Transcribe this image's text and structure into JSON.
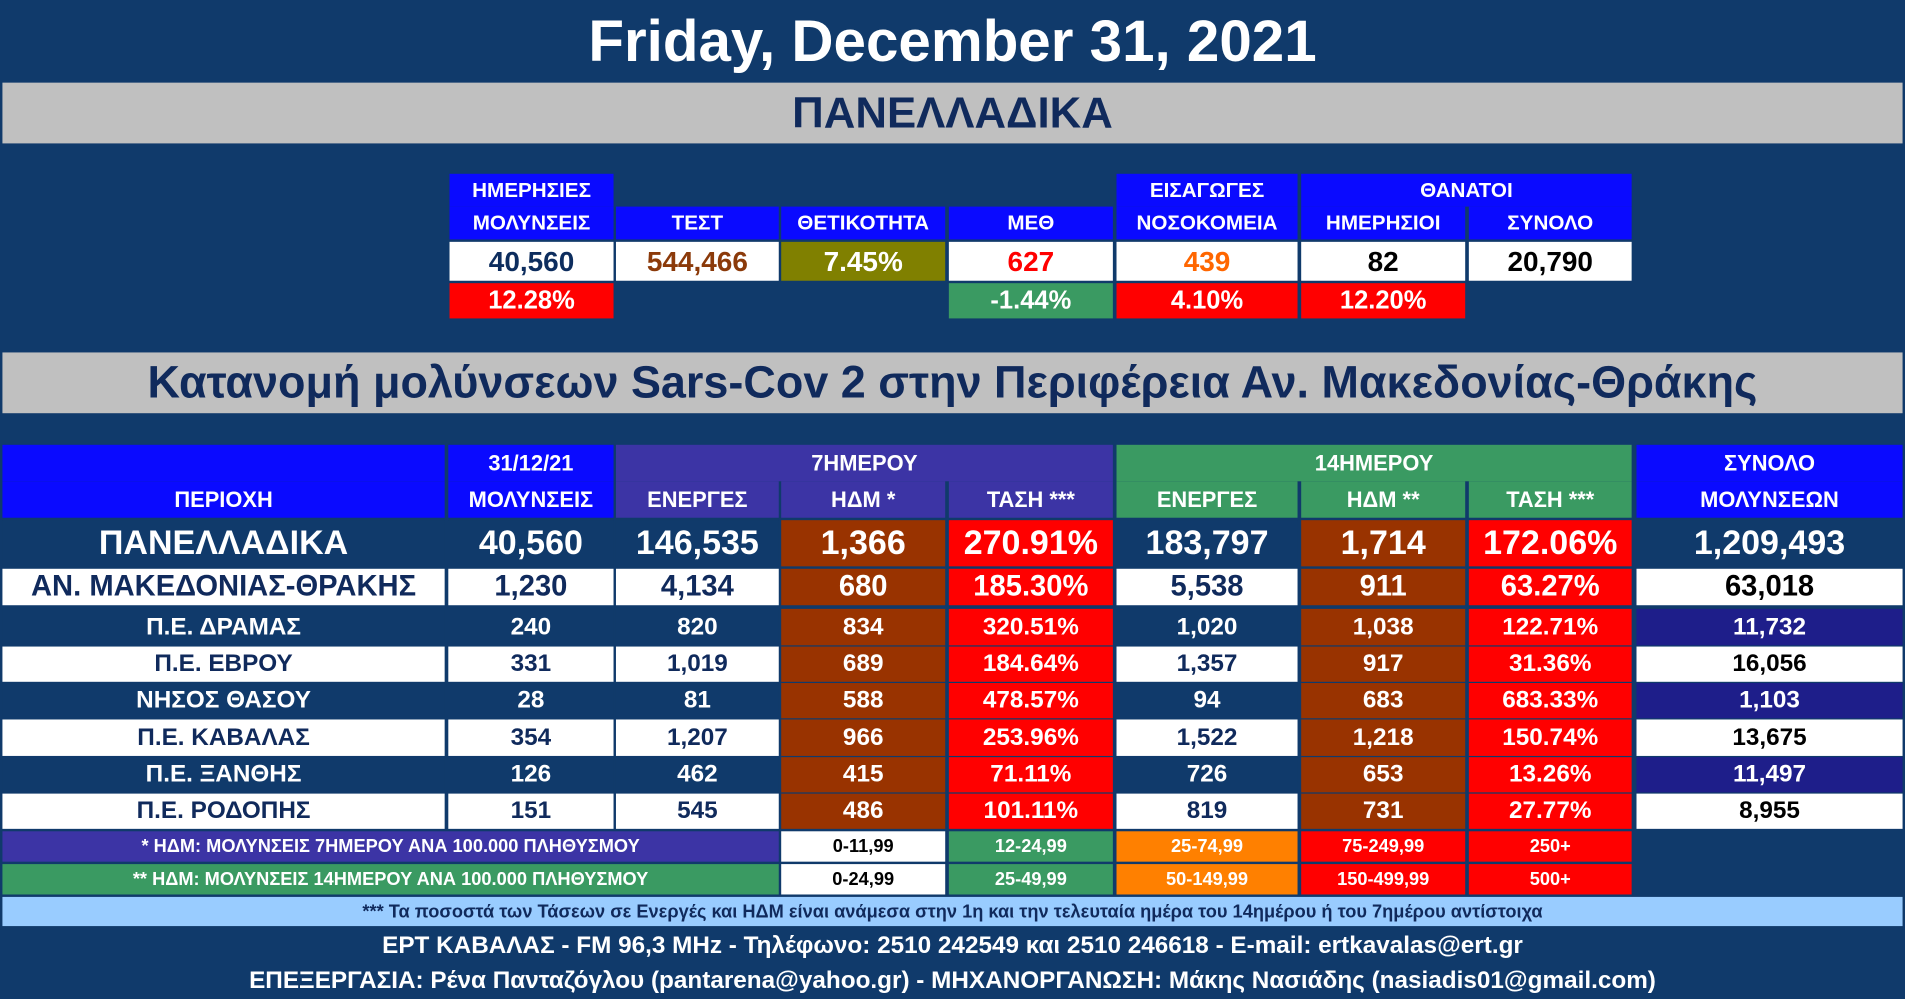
{
  "header": {
    "title": "Friday, December 31, 2021",
    "section1": "ΠΑΝΕΛΛΑΔΙΚΑ",
    "section2": "Κατανομή μολύνσεων Sars-Cov 2 στην Περιφέρεια Αν. Μακεδονίας-Θράκης"
  },
  "national": {
    "header_top": [
      "ΗΜΕΡΗΣΙΕΣ",
      "ΕΙΣΑΓΩΓΕΣ",
      "ΘΑΝΑΤΟΙ"
    ],
    "headers": [
      "ΜΟΛΥΝΣΕΙΣ",
      "ΤΕΣΤ",
      "ΘΕΤΙΚΟΤΗΤΑ",
      "ΜΕΘ",
      "ΝΟΣΟΚΟΜΕΙΑ",
      "ΗΜΕΡΗΣΙΟΙ",
      "ΣΥΝΟΛΟ"
    ],
    "values": [
      "40,560",
      "544,466",
      "7.45%",
      "627",
      "439",
      "82",
      "20,790"
    ],
    "changes": [
      "12.28%",
      null,
      null,
      "-1.44%",
      "4.10%",
      "12.20%",
      null
    ]
  },
  "regional": {
    "header_top": [
      "31/12/21",
      "7ΗΜΕΡΟΥ",
      "14ΗΜΕΡΟΥ",
      "ΣΥΝΟΛΟ"
    ],
    "headers": [
      "ΠΕΡΙΟΧΗ",
      "ΜΟΛΥΝΣΕΙΣ",
      "ΕΝΕΡΓΕΣ",
      "ΗΔΜ *",
      "ΤΑΣΗ ***",
      "ΕΝΕΡΓΕΣ",
      "ΗΔΜ **",
      "ΤΑΣΗ ***",
      "ΜΟΛΥΝΣΕΩΝ"
    ],
    "rows": [
      [
        "ΠΑΝΕΛΛΑΔΙΚΑ",
        "40,560",
        "146,535",
        "1,366",
        "270.91%",
        "183,797",
        "1,714",
        "172.06%",
        "1,209,493"
      ],
      [
        "ΑΝ. ΜΑΚΕΔΟΝΙΑΣ-ΘΡΑΚΗΣ",
        "1,230",
        "4,134",
        "680",
        "185.30%",
        "5,538",
        "911",
        "63.27%",
        "63,018"
      ],
      [
        "Π.Ε. ΔΡΑΜΑΣ",
        "240",
        "820",
        "834",
        "320.51%",
        "1,020",
        "1,038",
        "122.71%",
        "11,732"
      ],
      [
        "Π.Ε. ΕΒΡΟΥ",
        "331",
        "1,019",
        "689",
        "184.64%",
        "1,357",
        "917",
        "31.36%",
        "16,056"
      ],
      [
        "ΝΗΣΟΣ ΘΑΣΟΥ",
        "28",
        "81",
        "588",
        "478.57%",
        "94",
        "683",
        "683.33%",
        "1,103"
      ],
      [
        "Π.Ε. ΚΑΒΑΛΑΣ",
        "354",
        "1,207",
        "966",
        "253.96%",
        "1,522",
        "1,218",
        "150.74%",
        "13,675"
      ],
      [
        "Π.Ε. ΞΑΝΘΗΣ",
        "126",
        "462",
        "415",
        "71.11%",
        "726",
        "653",
        "13.26%",
        "11,497"
      ],
      [
        "Π.Ε. ΡΟΔΟΠΗΣ",
        "151",
        "545",
        "486",
        "101.11%",
        "819",
        "731",
        "27.77%",
        "8,955"
      ]
    ]
  },
  "legend": [
    {
      "label": "* ΗΔΜ: ΜΟΛΥΝΣΕΙΣ 7ΗΜΕΡΟΥ ΑΝΑ 100.000 ΠΛΗΘΥΣΜΟΥ",
      "ranges": [
        "0-11,99",
        "12-24,99",
        "25-74,99",
        "75-249,99",
        "250+"
      ]
    },
    {
      "label": "** ΗΔΜ: ΜΟΛΥΝΣΕΙΣ 14ΗΜΕΡΟΥ ΑΝΑ 100.000 ΠΛΗΘΥΣΜΟΥ",
      "ranges": [
        "0-24,99",
        "25-49,99",
        "50-149,99",
        "150-499,99",
        "500+"
      ]
    }
  ],
  "footnote": "*** Τα ποσοστά των Τάσεων σε Ενεργές και ΗΔΜ είναι ανάμεσα στην 1η και την τελευταία ημέρα του 14ημέρου ή του 7ημέρου αντίστοιχα",
  "footer": [
    "ΕΡΤ ΚΑΒΑΛΑΣ - FM 96,3 MHz - Τηλέφωνο:  2510 242549 και 2510 246618 - E-mail: ertkavalas@ert.gr",
    "ΕΠΕΞΕΡΓΑΣΙΑ: Ρένα Πανταζόγλου (pantarena@yahoo.gr) - ΜΗΧΑΝΟΡΓΑΝΩΣΗ: Μάκης Νασιάδης (nasiadis01@gmail.com)"
  ]
}
